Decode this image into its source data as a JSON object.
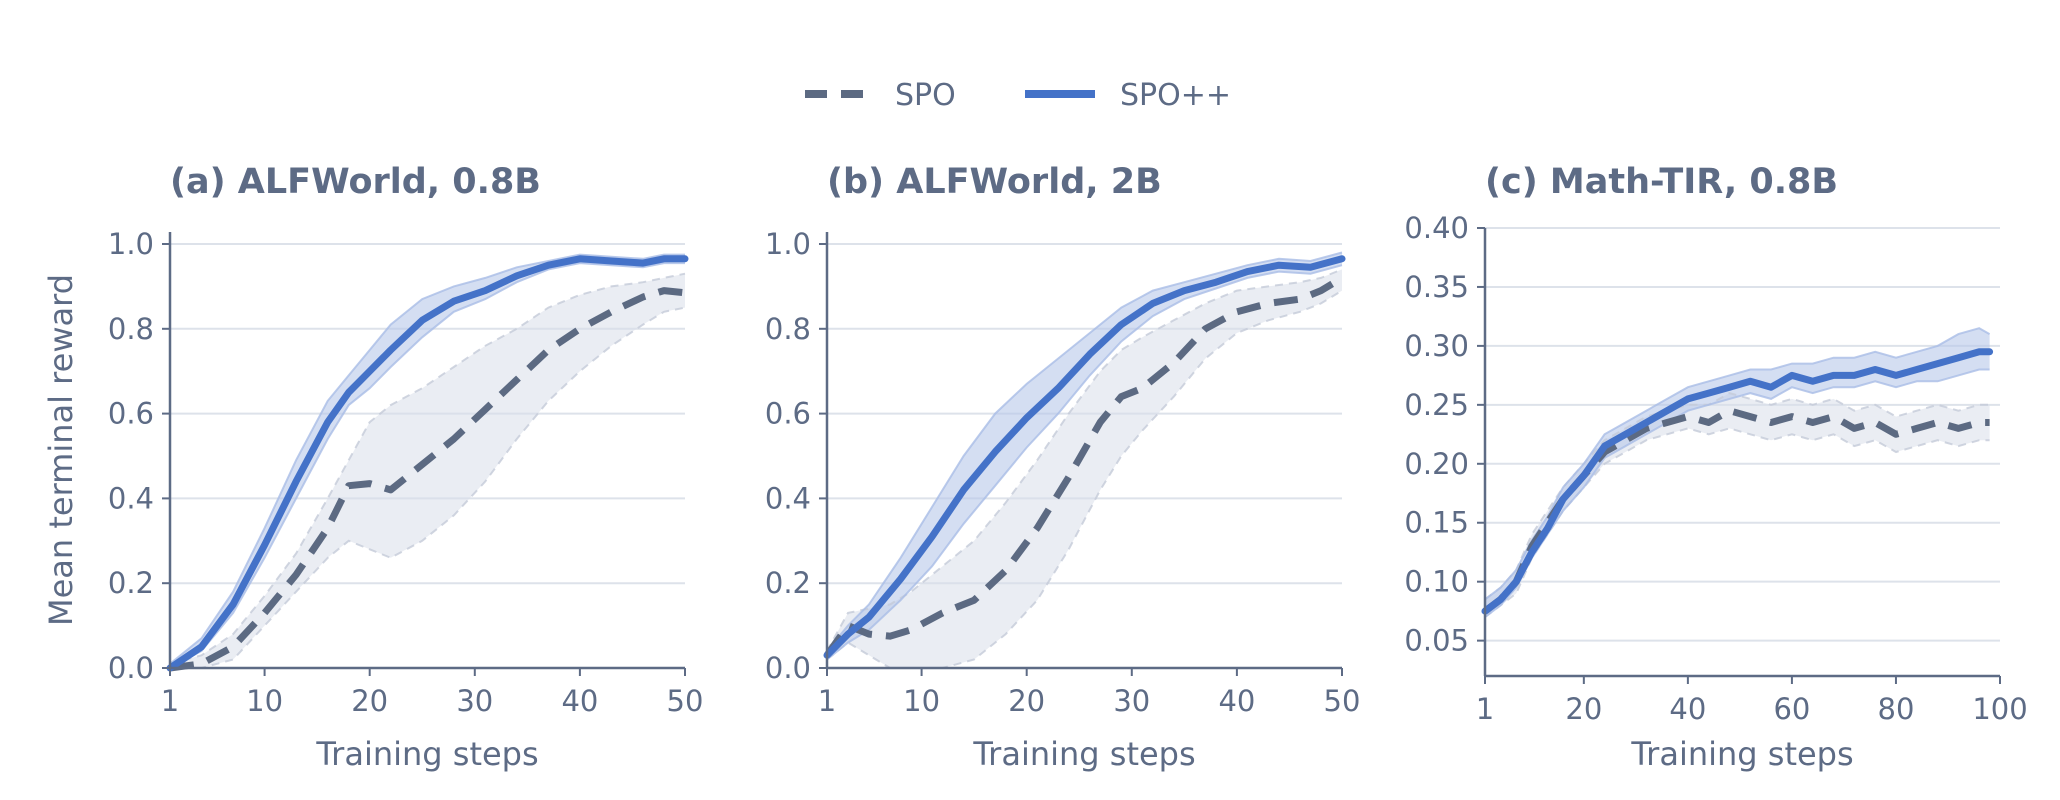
{
  "colors": {
    "spo": "#5c6a82",
    "spopp": "#4472c8",
    "spo_band": "#d9dfea",
    "spopp_band": "#b7c8ea",
    "grid": "#dde2ea",
    "axis": "#5d6b85",
    "text": "#5d6b85"
  },
  "legend": [
    {
      "name": "SPO",
      "style": "dashed"
    },
    {
      "name": "SPO++",
      "style": "solid"
    }
  ],
  "chart_data": [
    {
      "type": "line",
      "title": "(a) ALFWorld, 0.8B",
      "xlabel": "Training steps",
      "ylabel": "Mean terminal reward",
      "xlim": [
        1,
        50
      ],
      "ylim": [
        0,
        1.0
      ],
      "xticks": [
        1,
        10,
        20,
        30,
        40,
        50
      ],
      "xtick_labels": [
        "1",
        "10",
        "20",
        "30",
        "40",
        "50"
      ],
      "yticks": [
        0.0,
        0.2,
        0.4,
        0.6,
        0.8,
        1.0
      ],
      "ytick_labels": [
        "0.0",
        "0.2",
        "0.4",
        "0.6",
        "0.8",
        "1.0"
      ],
      "grid": "horizontal",
      "series": [
        {
          "name": "SPO",
          "x": [
            1,
            4,
            7,
            10,
            13,
            16,
            18,
            20,
            22,
            25,
            28,
            31,
            34,
            37,
            40,
            43,
            46,
            48,
            50
          ],
          "y": [
            0.0,
            0.01,
            0.05,
            0.13,
            0.22,
            0.33,
            0.43,
            0.435,
            0.42,
            0.48,
            0.54,
            0.61,
            0.68,
            0.75,
            0.8,
            0.84,
            0.875,
            0.89,
            0.885
          ],
          "lower": [
            0.0,
            0.0,
            0.02,
            0.1,
            0.18,
            0.26,
            0.3,
            0.28,
            0.26,
            0.3,
            0.36,
            0.44,
            0.54,
            0.63,
            0.7,
            0.76,
            0.81,
            0.84,
            0.85
          ],
          "upper": [
            0.01,
            0.03,
            0.08,
            0.17,
            0.27,
            0.4,
            0.49,
            0.58,
            0.62,
            0.66,
            0.71,
            0.76,
            0.8,
            0.85,
            0.88,
            0.9,
            0.91,
            0.92,
            0.93
          ]
        },
        {
          "name": "SPO++",
          "x": [
            1,
            4,
            7,
            10,
            13,
            16,
            18,
            20,
            22,
            25,
            28,
            31,
            34,
            37,
            40,
            43,
            46,
            48,
            50
          ],
          "y": [
            0.0,
            0.05,
            0.15,
            0.29,
            0.44,
            0.58,
            0.65,
            0.7,
            0.75,
            0.82,
            0.865,
            0.89,
            0.925,
            0.95,
            0.965,
            0.96,
            0.955,
            0.965,
            0.965
          ],
          "lower": [
            0.0,
            0.04,
            0.13,
            0.26,
            0.4,
            0.54,
            0.62,
            0.66,
            0.71,
            0.78,
            0.84,
            0.87,
            0.91,
            0.94,
            0.955,
            0.95,
            0.945,
            0.955,
            0.955
          ],
          "upper": [
            0.01,
            0.07,
            0.18,
            0.33,
            0.49,
            0.63,
            0.69,
            0.75,
            0.81,
            0.87,
            0.9,
            0.92,
            0.945,
            0.96,
            0.975,
            0.97,
            0.965,
            0.975,
            0.975
          ]
        }
      ]
    },
    {
      "type": "line",
      "title": "(b) ALFWorld, 2B",
      "xlabel": "Training steps",
      "xlim": [
        1,
        50
      ],
      "ylim": [
        0,
        1.0
      ],
      "xticks": [
        1,
        10,
        20,
        30,
        40,
        50
      ],
      "xtick_labels": [
        "1",
        "10",
        "20",
        "30",
        "40",
        "50"
      ],
      "yticks": [
        0.0,
        0.2,
        0.4,
        0.6,
        0.8,
        1.0
      ],
      "ytick_labels": [
        "0.0",
        "0.2",
        "0.4",
        "0.6",
        "0.8",
        "1.0"
      ],
      "grid": "horizontal",
      "series": [
        {
          "name": "SPO",
          "x": [
            1,
            3,
            5,
            7,
            9,
            12,
            15,
            18,
            21,
            24,
            27,
            29,
            31,
            34,
            37,
            40,
            43,
            46,
            48,
            50
          ],
          "y": [
            0.03,
            0.1,
            0.08,
            0.075,
            0.09,
            0.13,
            0.16,
            0.23,
            0.33,
            0.45,
            0.58,
            0.64,
            0.66,
            0.72,
            0.8,
            0.84,
            0.86,
            0.87,
            0.89,
            0.92
          ],
          "lower": [
            0.02,
            0.06,
            0.03,
            0.0,
            0.0,
            0.0,
            0.02,
            0.08,
            0.16,
            0.28,
            0.42,
            0.5,
            0.56,
            0.64,
            0.73,
            0.79,
            0.82,
            0.84,
            0.86,
            0.89
          ],
          "upper": [
            0.04,
            0.13,
            0.14,
            0.15,
            0.18,
            0.24,
            0.3,
            0.39,
            0.49,
            0.6,
            0.7,
            0.75,
            0.78,
            0.82,
            0.86,
            0.89,
            0.9,
            0.91,
            0.92,
            0.94
          ]
        },
        {
          "name": "SPO++",
          "x": [
            1,
            3,
            5,
            8,
            11,
            14,
            17,
            20,
            23,
            26,
            29,
            32,
            35,
            38,
            41,
            44,
            47,
            50
          ],
          "y": [
            0.03,
            0.08,
            0.12,
            0.21,
            0.31,
            0.42,
            0.51,
            0.59,
            0.66,
            0.74,
            0.81,
            0.86,
            0.89,
            0.91,
            0.935,
            0.95,
            0.945,
            0.965
          ],
          "lower": [
            0.02,
            0.06,
            0.09,
            0.16,
            0.24,
            0.34,
            0.43,
            0.52,
            0.6,
            0.69,
            0.77,
            0.83,
            0.87,
            0.895,
            0.92,
            0.935,
            0.93,
            0.95
          ],
          "upper": [
            0.04,
            0.1,
            0.15,
            0.26,
            0.38,
            0.5,
            0.6,
            0.67,
            0.73,
            0.79,
            0.85,
            0.89,
            0.91,
            0.93,
            0.95,
            0.965,
            0.96,
            0.98
          ]
        }
      ]
    },
    {
      "type": "line",
      "title": "(c) Math-TIR, 0.8B",
      "xlabel": "Training steps",
      "xlim": [
        1,
        100
      ],
      "ylim": [
        0.02,
        0.4
      ],
      "xticks": [
        1,
        20,
        40,
        60,
        80,
        100
      ],
      "xtick_labels": [
        "1",
        "20",
        "40",
        "60",
        "80",
        "100"
      ],
      "yticks": [
        0.05,
        0.1,
        0.15,
        0.2,
        0.25,
        0.3,
        0.35,
        0.4
      ],
      "ytick_labels": [
        "0.05",
        "0.10",
        "0.15",
        "0.20",
        "0.25",
        "0.30",
        "0.35",
        "0.40"
      ],
      "grid": "horizontal",
      "series": [
        {
          "name": "SPO",
          "x": [
            1,
            4,
            7,
            10,
            13,
            16,
            20,
            24,
            28,
            32,
            36,
            40,
            44,
            48,
            52,
            56,
            60,
            64,
            68,
            72,
            76,
            80,
            84,
            88,
            92,
            96,
            98
          ],
          "y": [
            0.075,
            0.085,
            0.1,
            0.13,
            0.15,
            0.17,
            0.19,
            0.21,
            0.22,
            0.23,
            0.235,
            0.24,
            0.235,
            0.245,
            0.24,
            0.235,
            0.24,
            0.235,
            0.24,
            0.23,
            0.235,
            0.225,
            0.23,
            0.235,
            0.23,
            0.235,
            0.235
          ],
          "lower": [
            0.07,
            0.08,
            0.09,
            0.12,
            0.14,
            0.16,
            0.18,
            0.2,
            0.21,
            0.22,
            0.225,
            0.23,
            0.225,
            0.23,
            0.225,
            0.22,
            0.225,
            0.22,
            0.225,
            0.215,
            0.22,
            0.21,
            0.215,
            0.22,
            0.215,
            0.22,
            0.22
          ],
          "upper": [
            0.085,
            0.095,
            0.11,
            0.14,
            0.16,
            0.18,
            0.2,
            0.22,
            0.23,
            0.24,
            0.245,
            0.25,
            0.25,
            0.26,
            0.255,
            0.25,
            0.255,
            0.25,
            0.255,
            0.245,
            0.25,
            0.24,
            0.245,
            0.25,
            0.245,
            0.25,
            0.25
          ]
        },
        {
          "name": "SPO++",
          "x": [
            1,
            4,
            7,
            10,
            13,
            16,
            20,
            24,
            28,
            32,
            36,
            40,
            44,
            48,
            52,
            56,
            60,
            64,
            68,
            72,
            76,
            80,
            84,
            88,
            92,
            96,
            98
          ],
          "y": [
            0.075,
            0.085,
            0.1,
            0.125,
            0.145,
            0.17,
            0.19,
            0.215,
            0.225,
            0.235,
            0.245,
            0.255,
            0.26,
            0.265,
            0.27,
            0.265,
            0.275,
            0.27,
            0.275,
            0.275,
            0.28,
            0.275,
            0.28,
            0.285,
            0.29,
            0.295,
            0.295
          ],
          "lower": [
            0.07,
            0.08,
            0.095,
            0.12,
            0.14,
            0.16,
            0.18,
            0.205,
            0.215,
            0.225,
            0.235,
            0.245,
            0.25,
            0.255,
            0.26,
            0.255,
            0.265,
            0.26,
            0.265,
            0.265,
            0.27,
            0.265,
            0.27,
            0.27,
            0.275,
            0.28,
            0.28
          ],
          "upper": [
            0.085,
            0.095,
            0.11,
            0.135,
            0.155,
            0.18,
            0.2,
            0.225,
            0.235,
            0.245,
            0.255,
            0.265,
            0.27,
            0.275,
            0.28,
            0.28,
            0.285,
            0.285,
            0.29,
            0.29,
            0.295,
            0.29,
            0.295,
            0.3,
            0.31,
            0.315,
            0.31
          ]
        }
      ]
    }
  ]
}
